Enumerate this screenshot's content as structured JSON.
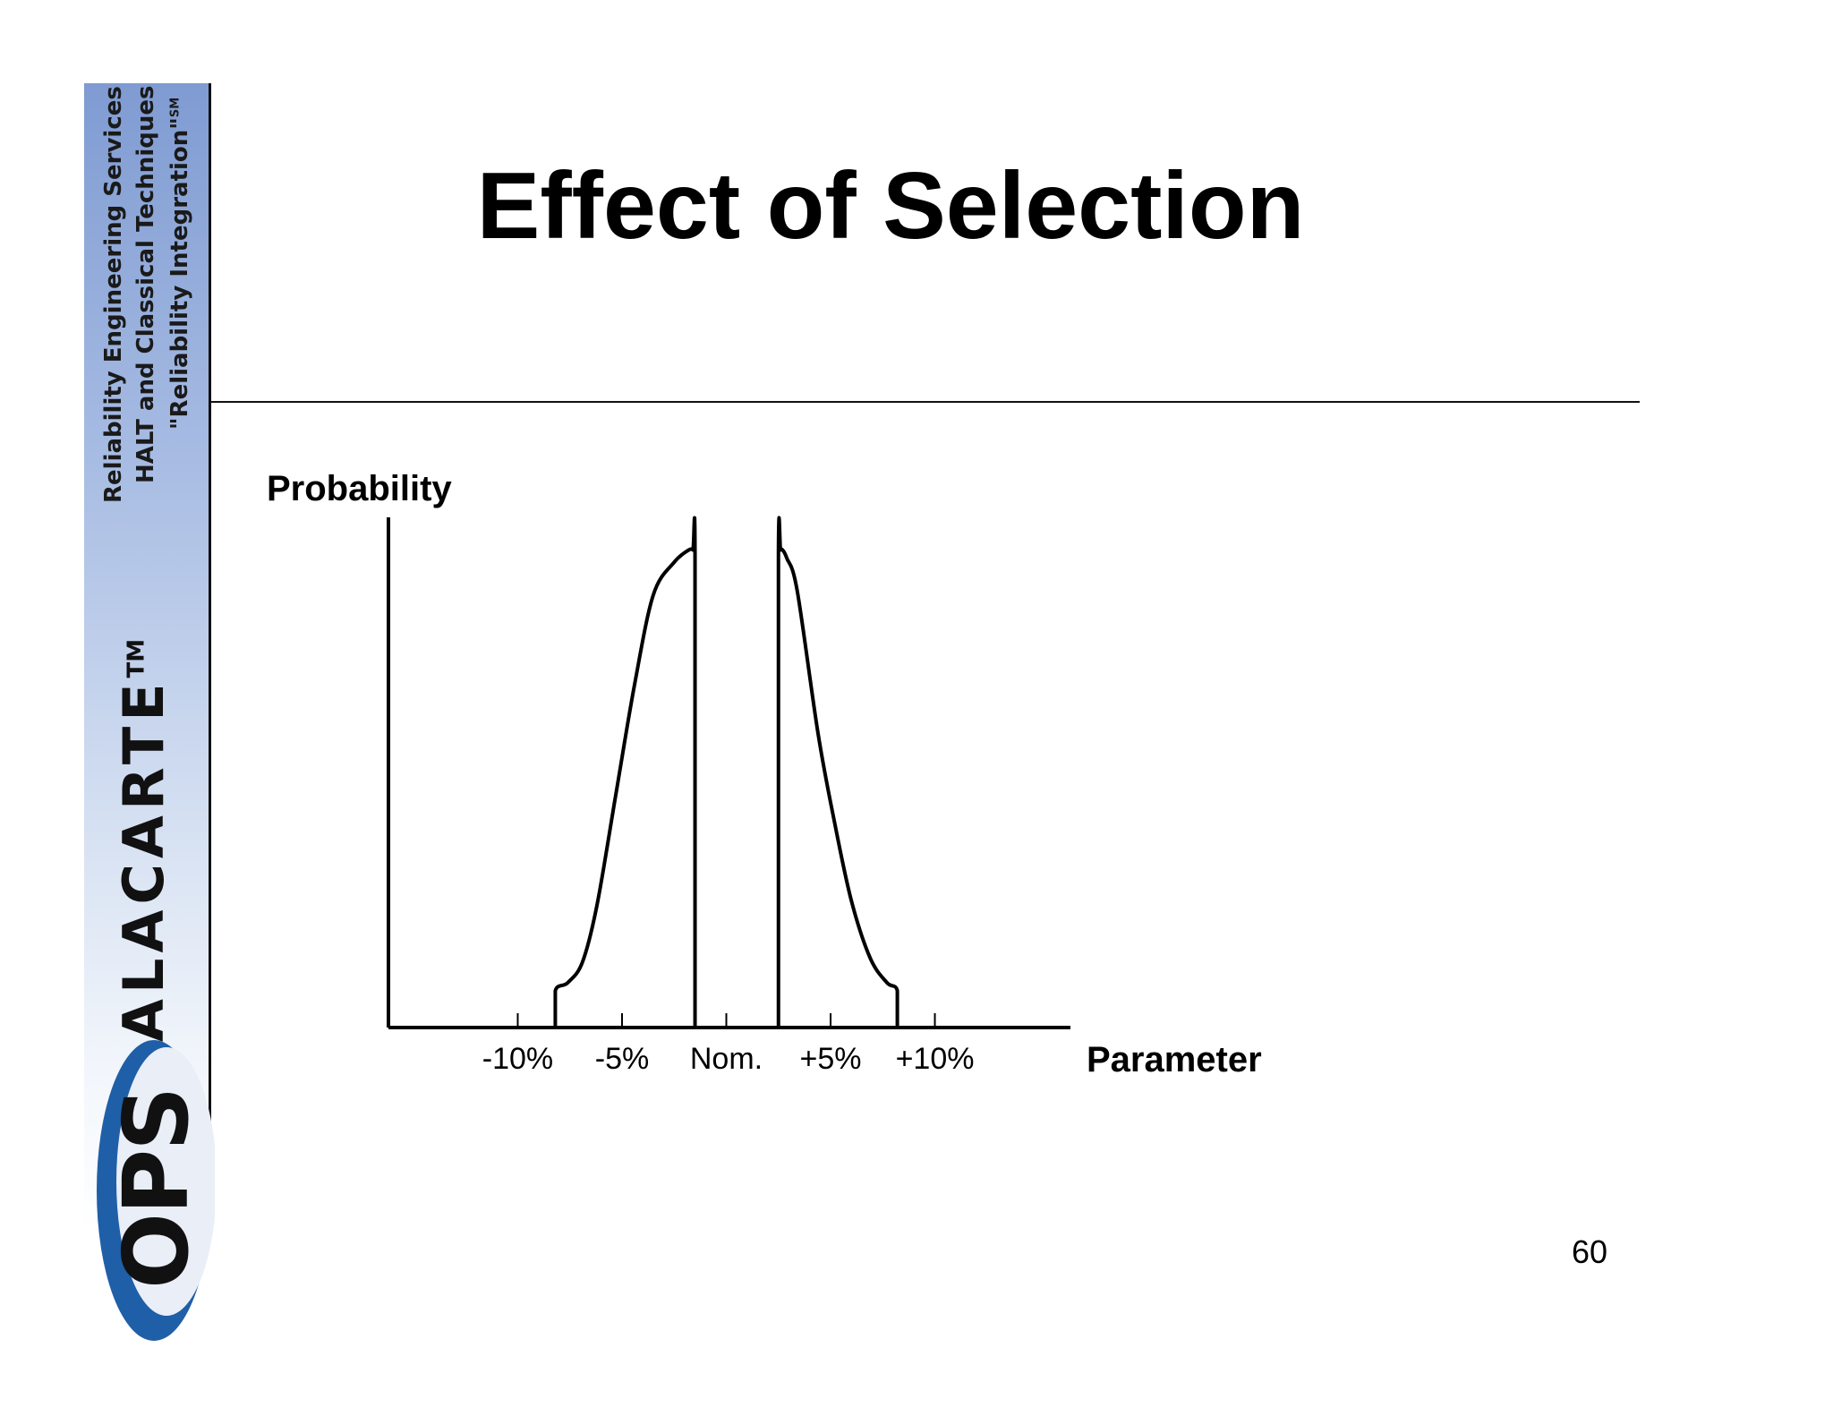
{
  "sidebar": {
    "tagline_1": "Reliability Engineering Services",
    "tagline_2": "HALT and Classical Techniques",
    "tagline_3": "\"Reliability Integration\"",
    "tagline_3_mark": "SM",
    "brand": "ALACARTE",
    "brand_mark": "TM",
    "logo_text": "OPS",
    "logo_color": "#1f5fa8"
  },
  "slide": {
    "title": "Effect of Selection",
    "page_number": "60"
  },
  "chart_data": {
    "type": "line",
    "title": "Effect of Selection",
    "ylabel": "Probability",
    "xlabel": "Parameter",
    "x_tick_labels": [
      "-10%",
      "-5%",
      "Nom.",
      "+5%",
      "+10%"
    ],
    "x_tick_values": [
      -10,
      -5,
      0,
      5,
      10
    ],
    "xlim": [
      -16.2,
      16.5
    ],
    "ylim": [
      0,
      1.25
    ],
    "grid": false,
    "legend": "none",
    "line_color": "#000000",
    "series": [
      {
        "x": [
          -8.2,
          -8.2,
          -7.6,
          -6.9,
          -6.2,
          -5.3,
          -4.4,
          -3.5,
          -2.5,
          -1.8,
          -1.6,
          -1.5,
          -1.5
        ],
        "y": [
          0,
          0.09,
          0.11,
          0.16,
          0.3,
          0.57,
          0.84,
          1.06,
          1.14,
          1.17,
          1.17,
          1.16,
          0
        ]
      },
      {
        "x": [
          2.5,
          2.5,
          2.6,
          2.7,
          2.9,
          3.4,
          4.4,
          5.2,
          6.0,
          6.9,
          7.7,
          8.2,
          8.2
        ],
        "y": [
          0,
          1.16,
          1.17,
          1.17,
          1.15,
          1.07,
          0.72,
          0.5,
          0.31,
          0.17,
          0.11,
          0.09,
          0
        ]
      }
    ]
  }
}
